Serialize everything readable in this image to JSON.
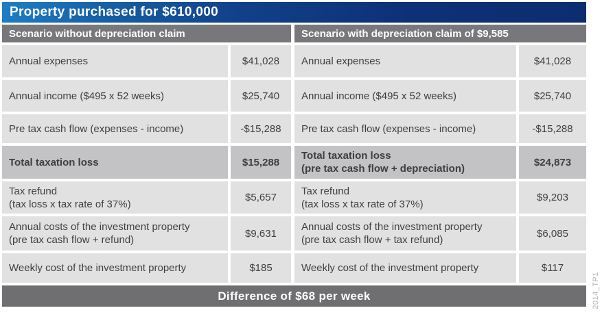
{
  "title": "Property purchased for $610,000",
  "footer": {
    "label": "Difference of $68 per week"
  },
  "watermark": "2014_TP1",
  "colors": {
    "title_gradient_left": "#1e7ec6",
    "title_gradient_right": "#0d2d6f",
    "column_header_gray": "#78787c",
    "row_gray": "#e2e1e2",
    "total_row_gray": "#c3c2c4",
    "footer_gray": "#6f6f72",
    "text_dark": "#3e3e40",
    "text_white": "#ffffff"
  },
  "scenarios": [
    {
      "header": "Scenario without depreciation claim",
      "rows": [
        {
          "label": "Annual expenses",
          "value": "$41,028"
        },
        {
          "label": "Annual income ($495 x 52 weeks)",
          "value": "$25,740"
        },
        {
          "label": "Pre tax cash flow (expenses - income)",
          "value": "-$15,288"
        },
        {
          "label": "Total taxation loss",
          "value": "$15,288"
        },
        {
          "label": "Tax refund\n(tax loss x tax rate of 37%)",
          "value": "$5,657"
        },
        {
          "label": "Annual costs of the investment property\n(pre tax cash flow + refund)",
          "value": "$9,631"
        },
        {
          "label": "Weekly cost of the investment property",
          "value": "$185"
        }
      ]
    },
    {
      "header": "Scenario with depreciation claim of $9,585",
      "rows": [
        {
          "label": "Annual expenses",
          "value": "$41,028"
        },
        {
          "label": "Annual income ($495 x 52 weeks)",
          "value": "$25,740"
        },
        {
          "label": "Pre tax cash flow (expenses - income)",
          "value": "-$15,288"
        },
        {
          "label": "Total taxation loss\n(pre tax cash flow + depreciation)",
          "value": "$24,873"
        },
        {
          "label": "Tax refund\n(tax loss x tax rate of 37%)",
          "value": "$9,203"
        },
        {
          "label": "Annual costs of the investment property\n(pre tax cash flow + tax refund)",
          "value": "$6,085"
        },
        {
          "label": "Weekly cost of the investment property",
          "value": "$117"
        }
      ]
    }
  ]
}
